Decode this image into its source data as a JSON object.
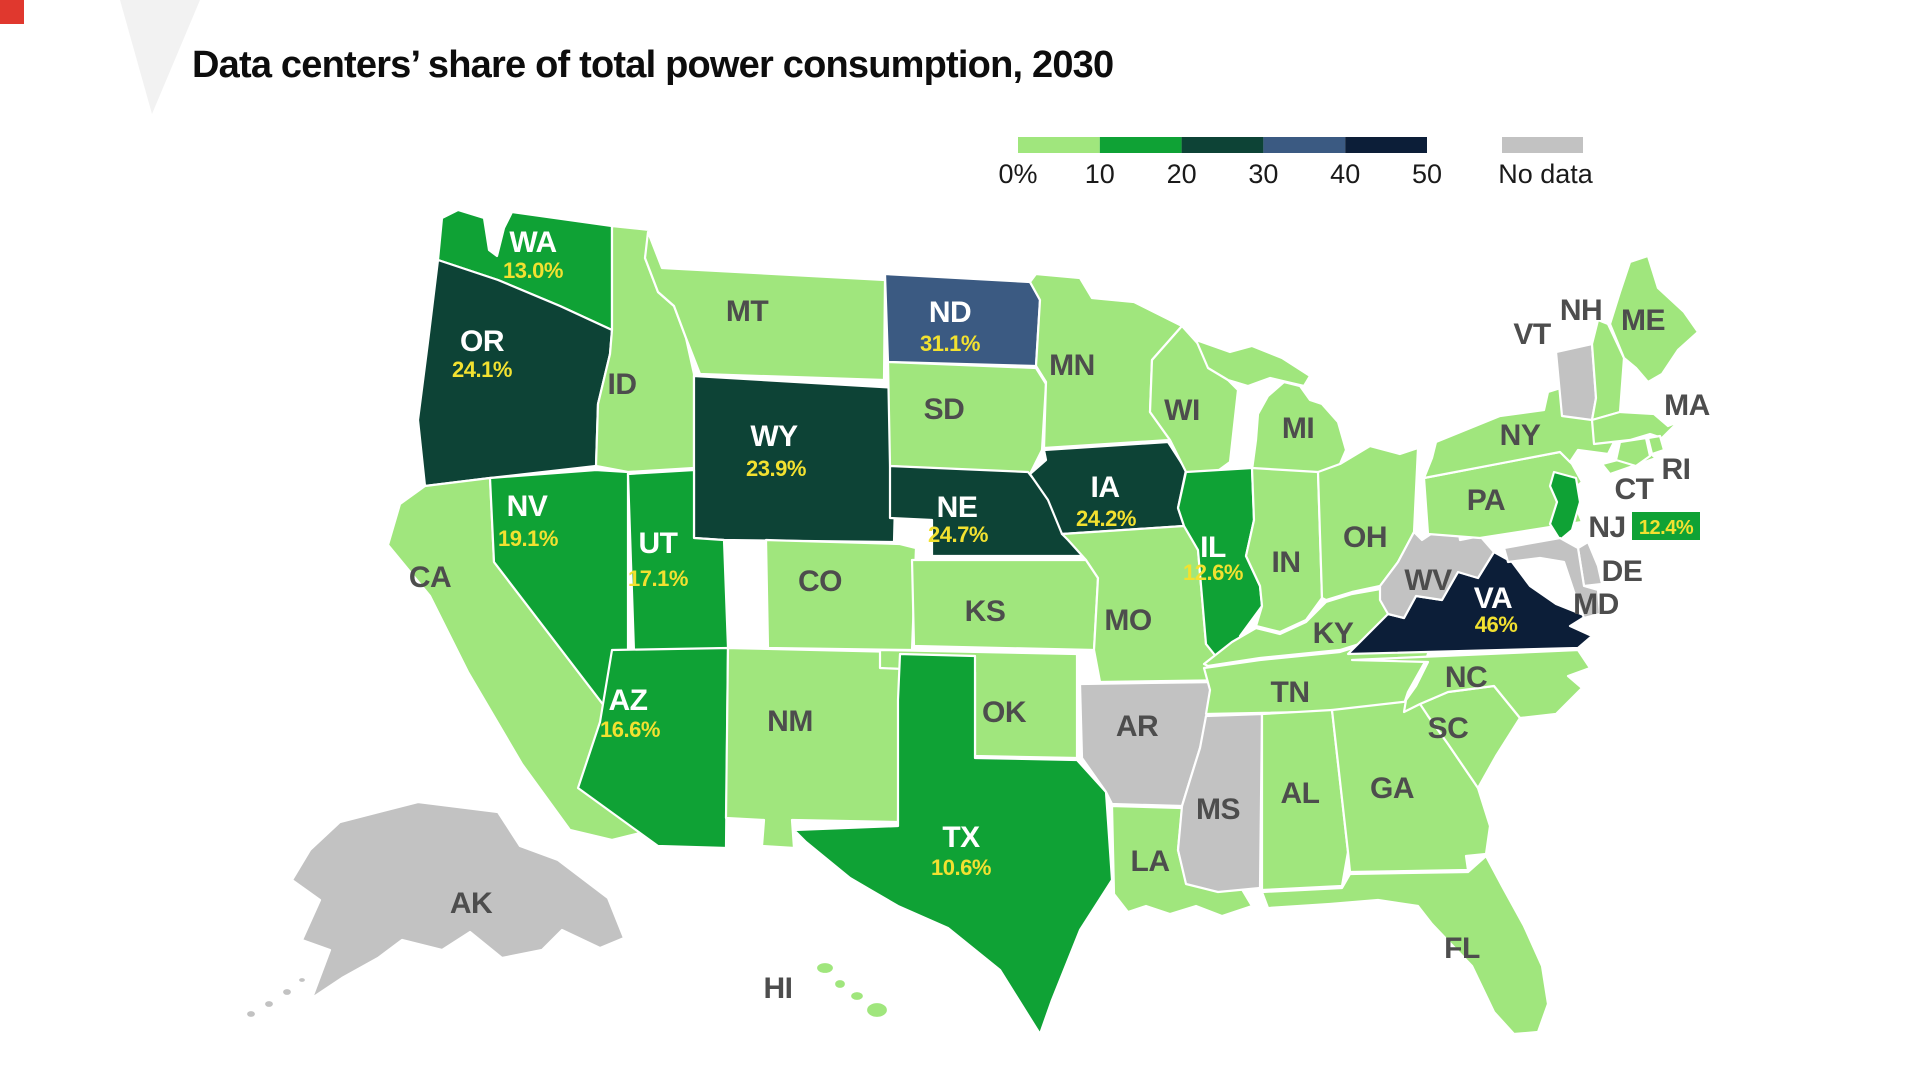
{
  "title": "Data centers’ share of total power consumption, 2030",
  "legend": {
    "ticks": [
      "0%",
      "10",
      "20",
      "30",
      "40",
      "50"
    ],
    "no_data_label": "No data"
  },
  "chart_data": {
    "type": "choropleth",
    "title": "Data centers’ share of total power consumption, 2030",
    "unit": "percent of total power consumption",
    "legend_ticks": [
      "0%",
      "10",
      "20",
      "30",
      "40",
      "50"
    ],
    "color_scale": {
      "0-10": "#a0e67d",
      "10-20": "#0fa235",
      "20-30": "#0d4336",
      "30-40": "#3b5a82",
      "40-50": "#0c1e38",
      "no-data": "#c2c2c2"
    },
    "label_colors": {
      "state_abbr_on_dark": "#ffffff",
      "state_abbr_plain": "#4d4d4d",
      "value_text": "#f2e130"
    },
    "states": [
      {
        "abbr": "WA",
        "value": 13.0,
        "display": "13.0%",
        "category": "10-20"
      },
      {
        "abbr": "OR",
        "value": 24.1,
        "display": "24.1%",
        "category": "20-30"
      },
      {
        "abbr": "CA",
        "value": null,
        "display": null,
        "category": "0-10"
      },
      {
        "abbr": "NV",
        "value": 19.1,
        "display": "19.1%",
        "category": "10-20"
      },
      {
        "abbr": "ID",
        "value": null,
        "display": null,
        "category": "0-10"
      },
      {
        "abbr": "MT",
        "value": null,
        "display": null,
        "category": "0-10"
      },
      {
        "abbr": "WY",
        "value": 23.9,
        "display": "23.9%",
        "category": "20-30"
      },
      {
        "abbr": "UT",
        "value": 17.1,
        "display": "17.1%",
        "category": "10-20"
      },
      {
        "abbr": "CO",
        "value": null,
        "display": null,
        "category": "0-10"
      },
      {
        "abbr": "AZ",
        "value": 16.6,
        "display": "16.6%",
        "category": "10-20"
      },
      {
        "abbr": "NM",
        "value": null,
        "display": null,
        "category": "0-10"
      },
      {
        "abbr": "ND",
        "value": 31.1,
        "display": "31.1%",
        "category": "30-40"
      },
      {
        "abbr": "SD",
        "value": null,
        "display": null,
        "category": "0-10"
      },
      {
        "abbr": "NE",
        "value": 24.7,
        "display": "24.7%",
        "category": "20-30"
      },
      {
        "abbr": "KS",
        "value": null,
        "display": null,
        "category": "0-10"
      },
      {
        "abbr": "OK",
        "value": null,
        "display": null,
        "category": "0-10"
      },
      {
        "abbr": "TX",
        "value": 10.6,
        "display": "10.6%",
        "category": "10-20"
      },
      {
        "abbr": "MN",
        "value": null,
        "display": null,
        "category": "0-10"
      },
      {
        "abbr": "IA",
        "value": 24.2,
        "display": "24.2%",
        "category": "20-30"
      },
      {
        "abbr": "MO",
        "value": null,
        "display": null,
        "category": "0-10"
      },
      {
        "abbr": "AR",
        "value": null,
        "display": null,
        "category": "no-data"
      },
      {
        "abbr": "LA",
        "value": null,
        "display": null,
        "category": "0-10"
      },
      {
        "abbr": "WI",
        "value": null,
        "display": null,
        "category": "0-10"
      },
      {
        "abbr": "IL",
        "value": 12.6,
        "display": "12.6%",
        "category": "10-20"
      },
      {
        "abbr": "MS",
        "value": null,
        "display": null,
        "category": "no-data"
      },
      {
        "abbr": "MI",
        "value": null,
        "display": null,
        "category": "0-10"
      },
      {
        "abbr": "IN",
        "value": null,
        "display": null,
        "category": "0-10"
      },
      {
        "abbr": "OH",
        "value": null,
        "display": null,
        "category": "0-10"
      },
      {
        "abbr": "KY",
        "value": null,
        "display": null,
        "category": "0-10"
      },
      {
        "abbr": "TN",
        "value": null,
        "display": null,
        "category": "0-10"
      },
      {
        "abbr": "AL",
        "value": null,
        "display": null,
        "category": "0-10"
      },
      {
        "abbr": "GA",
        "value": null,
        "display": null,
        "category": "0-10"
      },
      {
        "abbr": "FL",
        "value": null,
        "display": null,
        "category": "0-10"
      },
      {
        "abbr": "SC",
        "value": null,
        "display": null,
        "category": "0-10"
      },
      {
        "abbr": "NC",
        "value": null,
        "display": null,
        "category": "0-10"
      },
      {
        "abbr": "VA",
        "value": 46,
        "display": "46%",
        "category": "40-50"
      },
      {
        "abbr": "WV",
        "value": null,
        "display": null,
        "category": "no-data"
      },
      {
        "abbr": "PA",
        "value": null,
        "display": null,
        "category": "0-10"
      },
      {
        "abbr": "NY",
        "value": null,
        "display": null,
        "category": "0-10"
      },
      {
        "abbr": "NJ",
        "value": 12.4,
        "display": "12.4%",
        "category": "10-20"
      },
      {
        "abbr": "DE",
        "value": null,
        "display": null,
        "category": "no-data"
      },
      {
        "abbr": "MD",
        "value": null,
        "display": null,
        "category": "no-data"
      },
      {
        "abbr": "VT",
        "value": null,
        "display": null,
        "category": "no-data"
      },
      {
        "abbr": "NH",
        "value": null,
        "display": null,
        "category": "0-10"
      },
      {
        "abbr": "ME",
        "value": null,
        "display": null,
        "category": "0-10"
      },
      {
        "abbr": "MA",
        "value": null,
        "display": null,
        "category": "0-10"
      },
      {
        "abbr": "RI",
        "value": null,
        "display": null,
        "category": "0-10"
      },
      {
        "abbr": "CT",
        "value": null,
        "display": null,
        "category": "0-10"
      },
      {
        "abbr": "HI",
        "value": null,
        "display": null,
        "category": "0-10"
      },
      {
        "abbr": "AK",
        "value": null,
        "display": null,
        "category": "no-data"
      }
    ]
  }
}
